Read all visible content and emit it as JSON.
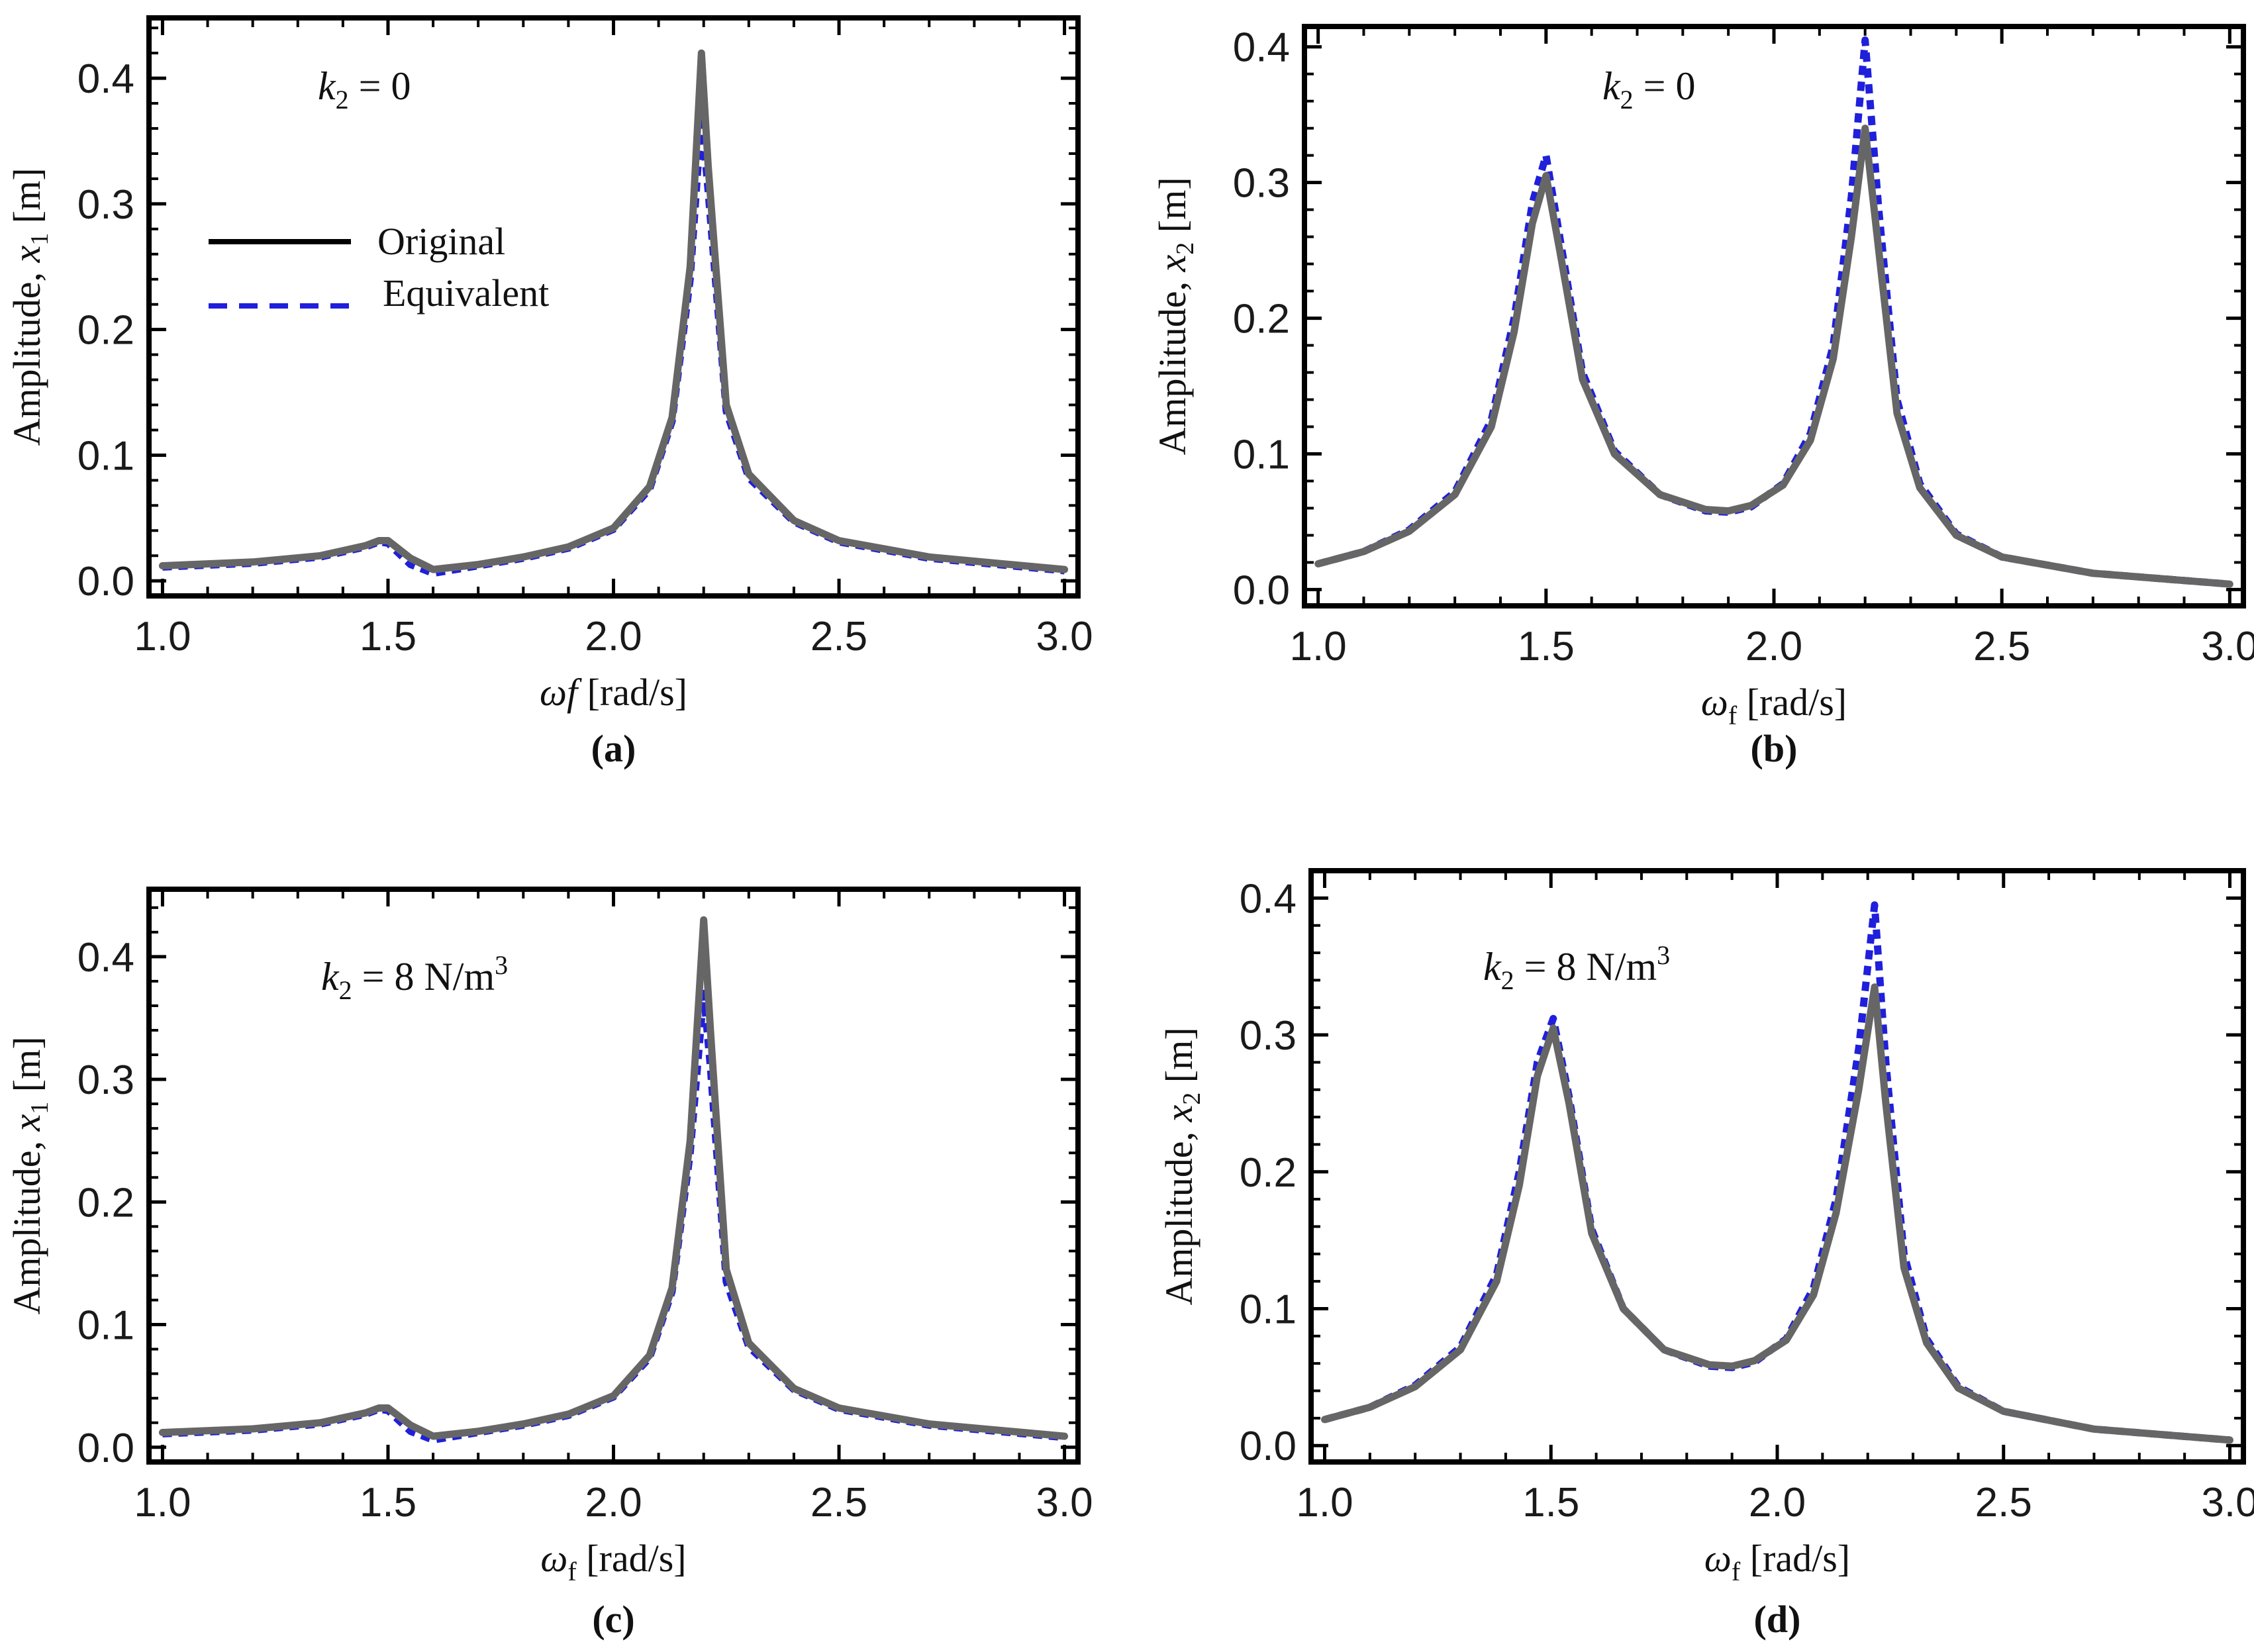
{
  "colors": {
    "original": "#666666",
    "equivalent": "#1f1fdc",
    "frame": "#000000"
  },
  "legend": {
    "original": "Original",
    "equivalent": "Equivalent"
  },
  "chart_data": [
    {
      "type": "line",
      "panel_label": "(a)",
      "annotation": {
        "var": "k",
        "sub": "2",
        "rest": " = 0",
        "sup": ""
      },
      "ylabel": {
        "prefix": "Amplitude, ",
        "var": "x",
        "sub": "1",
        "unit": " [m]"
      },
      "xlabel": {
        "var": "ωf",
        "sub": "",
        "unit": " [rad/s]"
      },
      "xlim": [
        0.97,
        3.03
      ],
      "ylim": [
        -0.012,
        0.448
      ],
      "xticks": [
        1.0,
        1.5,
        2.0,
        2.5,
        3.0
      ],
      "xtick_labels": [
        "1.0",
        "1.5",
        "2.0",
        "2.5",
        "3.0"
      ],
      "yticks": [
        0.0,
        0.1,
        0.2,
        0.3,
        0.4
      ],
      "ytick_labels": [
        "0.0",
        "0.1",
        "0.2",
        "0.3",
        "0.4"
      ],
      "series": [
        {
          "name": "Original",
          "x": [
            1.0,
            1.2,
            1.35,
            1.45,
            1.48,
            1.5,
            1.55,
            1.6,
            1.7,
            1.8,
            1.9,
            2.0,
            2.08,
            2.13,
            2.17,
            2.195,
            2.21,
            2.25,
            2.3,
            2.4,
            2.5,
            2.7,
            3.0
          ],
          "y": [
            0.012,
            0.015,
            0.02,
            0.028,
            0.032,
            0.032,
            0.018,
            0.009,
            0.013,
            0.019,
            0.027,
            0.042,
            0.075,
            0.13,
            0.25,
            0.42,
            0.33,
            0.14,
            0.085,
            0.048,
            0.032,
            0.019,
            0.009
          ]
        },
        {
          "name": "Equivalent",
          "x": [
            1.0,
            1.2,
            1.35,
            1.45,
            1.48,
            1.5,
            1.55,
            1.6,
            1.7,
            1.8,
            1.9,
            2.0,
            2.08,
            2.13,
            2.17,
            2.195,
            2.21,
            2.25,
            2.3,
            2.4,
            2.5,
            2.7,
            3.0
          ],
          "y": [
            0.011,
            0.014,
            0.019,
            0.027,
            0.031,
            0.03,
            0.013,
            0.006,
            0.012,
            0.018,
            0.026,
            0.041,
            0.073,
            0.127,
            0.24,
            0.37,
            0.31,
            0.135,
            0.082,
            0.047,
            0.031,
            0.018,
            0.008
          ]
        }
      ]
    },
    {
      "type": "line",
      "panel_label": "(b)",
      "annotation": {
        "var": "k",
        "sub": "2",
        "rest": " = 0",
        "sup": ""
      },
      "ylabel": {
        "prefix": "Amplitude, ",
        "var": "x",
        "sub": "2",
        "unit": " [m]"
      },
      "xlabel": {
        "var": "ω",
        "sub": "f",
        "unit": " [rad/s]"
      },
      "xlim": [
        0.97,
        3.03
      ],
      "ylim": [
        -0.012,
        0.415
      ],
      "xticks": [
        1.0,
        1.5,
        2.0,
        2.5,
        3.0
      ],
      "xtick_labels": [
        "1.0",
        "1.5",
        "2.0",
        "2.5",
        "3.0"
      ],
      "yticks": [
        0.0,
        0.1,
        0.2,
        0.3,
        0.4
      ],
      "ytick_labels": [
        "0.0",
        "0.1",
        "0.2",
        "0.3",
        "0.4"
      ],
      "series": [
        {
          "name": "Original",
          "x": [
            1.0,
            1.1,
            1.2,
            1.3,
            1.38,
            1.43,
            1.47,
            1.5,
            1.53,
            1.58,
            1.65,
            1.75,
            1.85,
            1.9,
            1.95,
            2.02,
            2.08,
            2.13,
            2.17,
            2.2,
            2.23,
            2.27,
            2.32,
            2.4,
            2.5,
            2.7,
            3.0
          ],
          "y": [
            0.019,
            0.028,
            0.043,
            0.07,
            0.12,
            0.19,
            0.27,
            0.305,
            0.25,
            0.155,
            0.1,
            0.07,
            0.059,
            0.058,
            0.062,
            0.077,
            0.11,
            0.17,
            0.26,
            0.34,
            0.25,
            0.13,
            0.075,
            0.04,
            0.024,
            0.012,
            0.004
          ]
        },
        {
          "name": "Equivalent",
          "x": [
            1.0,
            1.1,
            1.2,
            1.3,
            1.38,
            1.43,
            1.47,
            1.5,
            1.53,
            1.58,
            1.65,
            1.75,
            1.85,
            1.9,
            1.95,
            2.02,
            2.08,
            2.13,
            2.17,
            2.2,
            2.23,
            2.27,
            2.32,
            2.4,
            2.5,
            2.7,
            3.0
          ],
          "y": [
            0.019,
            0.028,
            0.044,
            0.072,
            0.125,
            0.2,
            0.285,
            0.32,
            0.26,
            0.16,
            0.102,
            0.07,
            0.058,
            0.057,
            0.061,
            0.078,
            0.115,
            0.18,
            0.29,
            0.405,
            0.28,
            0.14,
            0.078,
            0.041,
            0.024,
            0.012,
            0.004
          ]
        }
      ]
    },
    {
      "type": "line",
      "panel_label": "(c)",
      "annotation": {
        "var": "k",
        "sub": "2",
        "rest": " = 8 N/m",
        "sup": "3"
      },
      "ylabel": {
        "prefix": "Amplitude, ",
        "var": "x",
        "sub": "1",
        "unit": " [m]"
      },
      "xlabel": {
        "var": "ω",
        "sub": "f",
        "unit": " [rad/s]"
      },
      "xlim": [
        0.97,
        3.03
      ],
      "ylim": [
        -0.012,
        0.455
      ],
      "xticks": [
        1.0,
        1.5,
        2.0,
        2.5,
        3.0
      ],
      "xtick_labels": [
        "1.0",
        "1.5",
        "2.0",
        "2.5",
        "3.0"
      ],
      "yticks": [
        0.0,
        0.1,
        0.2,
        0.3,
        0.4
      ],
      "ytick_labels": [
        "0.0",
        "0.1",
        "0.2",
        "0.3",
        "0.4"
      ],
      "series": [
        {
          "name": "Original",
          "x": [
            1.0,
            1.2,
            1.35,
            1.45,
            1.48,
            1.5,
            1.55,
            1.6,
            1.7,
            1.8,
            1.9,
            2.0,
            2.08,
            2.13,
            2.17,
            2.2,
            2.215,
            2.25,
            2.3,
            2.4,
            2.5,
            2.7,
            3.0
          ],
          "y": [
            0.012,
            0.015,
            0.02,
            0.028,
            0.032,
            0.032,
            0.018,
            0.009,
            0.013,
            0.019,
            0.027,
            0.042,
            0.075,
            0.13,
            0.25,
            0.43,
            0.34,
            0.145,
            0.085,
            0.048,
            0.032,
            0.019,
            0.009
          ]
        },
        {
          "name": "Equivalent",
          "x": [
            1.0,
            1.2,
            1.35,
            1.45,
            1.48,
            1.5,
            1.55,
            1.6,
            1.7,
            1.8,
            1.9,
            2.0,
            2.08,
            2.13,
            2.17,
            2.2,
            2.215,
            2.25,
            2.3,
            2.4,
            2.5,
            2.7,
            3.0
          ],
          "y": [
            0.011,
            0.014,
            0.019,
            0.027,
            0.031,
            0.03,
            0.013,
            0.006,
            0.012,
            0.018,
            0.026,
            0.041,
            0.073,
            0.127,
            0.24,
            0.37,
            0.31,
            0.135,
            0.082,
            0.047,
            0.031,
            0.018,
            0.008
          ]
        }
      ]
    },
    {
      "type": "line",
      "panel_label": "(d)",
      "annotation": {
        "var": "k",
        "sub": "2",
        "rest": " = 8 N/m",
        "sup": "3"
      },
      "ylabel": {
        "prefix": "Amplitude, ",
        "var": "x",
        "sub": "2",
        "unit": " [m]"
      },
      "xlabel": {
        "var": "ω",
        "sub": "f",
        "unit": " [rad/s]"
      },
      "xlim": [
        0.97,
        3.03
      ],
      "ylim": [
        -0.012,
        0.42
      ],
      "xticks": [
        1.0,
        1.5,
        2.0,
        2.5,
        3.0
      ],
      "xtick_labels": [
        "1.0",
        "1.5",
        "2.0",
        "2.5",
        "3.0"
      ],
      "yticks": [
        0.0,
        0.1,
        0.2,
        0.3,
        0.4
      ],
      "ytick_labels": [
        "0.0",
        "0.1",
        "0.2",
        "0.3",
        "0.4"
      ],
      "series": [
        {
          "name": "Original",
          "x": [
            1.0,
            1.1,
            1.2,
            1.3,
            1.38,
            1.43,
            1.47,
            1.505,
            1.54,
            1.59,
            1.66,
            1.75,
            1.85,
            1.9,
            1.95,
            2.02,
            2.08,
            2.13,
            2.18,
            2.215,
            2.24,
            2.28,
            2.33,
            2.4,
            2.5,
            2.7,
            3.0
          ],
          "y": [
            0.019,
            0.028,
            0.043,
            0.07,
            0.12,
            0.19,
            0.27,
            0.305,
            0.25,
            0.155,
            0.1,
            0.07,
            0.059,
            0.058,
            0.062,
            0.077,
            0.11,
            0.17,
            0.26,
            0.335,
            0.25,
            0.13,
            0.075,
            0.042,
            0.025,
            0.012,
            0.004
          ]
        },
        {
          "name": "Equivalent",
          "x": [
            1.0,
            1.1,
            1.2,
            1.3,
            1.38,
            1.43,
            1.47,
            1.505,
            1.54,
            1.59,
            1.66,
            1.75,
            1.85,
            1.9,
            1.95,
            2.02,
            2.08,
            2.13,
            2.18,
            2.215,
            2.24,
            2.28,
            2.33,
            2.4,
            2.5,
            2.7,
            3.0
          ],
          "y": [
            0.019,
            0.028,
            0.044,
            0.072,
            0.125,
            0.2,
            0.28,
            0.312,
            0.255,
            0.158,
            0.1,
            0.07,
            0.058,
            0.057,
            0.061,
            0.078,
            0.115,
            0.18,
            0.29,
            0.395,
            0.28,
            0.14,
            0.078,
            0.043,
            0.025,
            0.012,
            0.004
          ]
        }
      ]
    }
  ]
}
